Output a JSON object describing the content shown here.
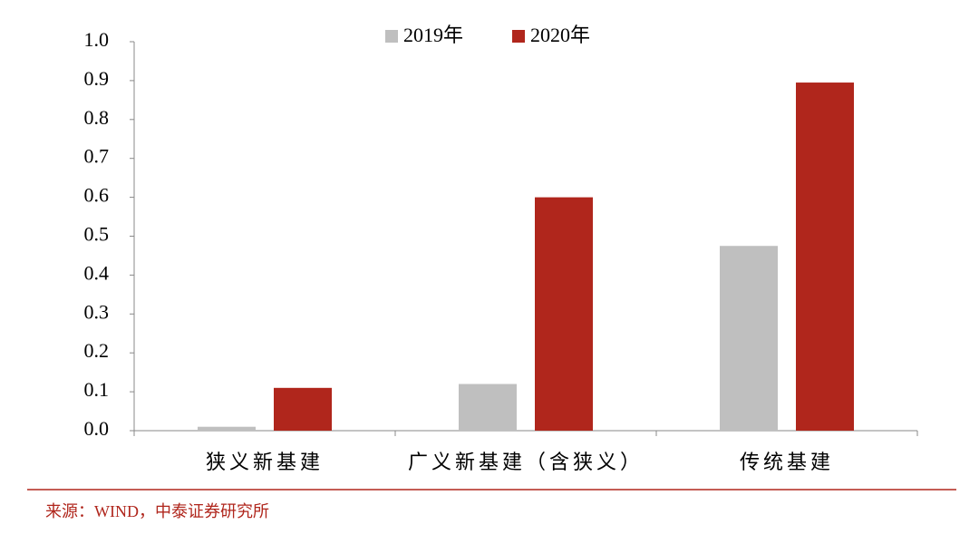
{
  "chart_data": {
    "type": "bar",
    "categories": [
      "狭义新基建",
      "广义新基建（含狭义）",
      "传统基建"
    ],
    "series": [
      {
        "name": "2019年",
        "color": "#bfbfbf",
        "values": [
          0.01,
          0.12,
          0.475
        ]
      },
      {
        "name": "2020年",
        "color": "#b0261c",
        "values": [
          0.11,
          0.6,
          0.895
        ]
      }
    ],
    "ylim": [
      0,
      1
    ],
    "yticks": [
      {
        "value": 0,
        "label": "0.0"
      },
      0.1,
      0.2,
      0.3,
      0.4,
      0.5,
      0.6,
      0.7,
      0.8,
      0.9,
      {
        "value": 1,
        "label": "1.0"
      }
    ],
    "source": "来源：WIND，中泰证券研究所"
  }
}
